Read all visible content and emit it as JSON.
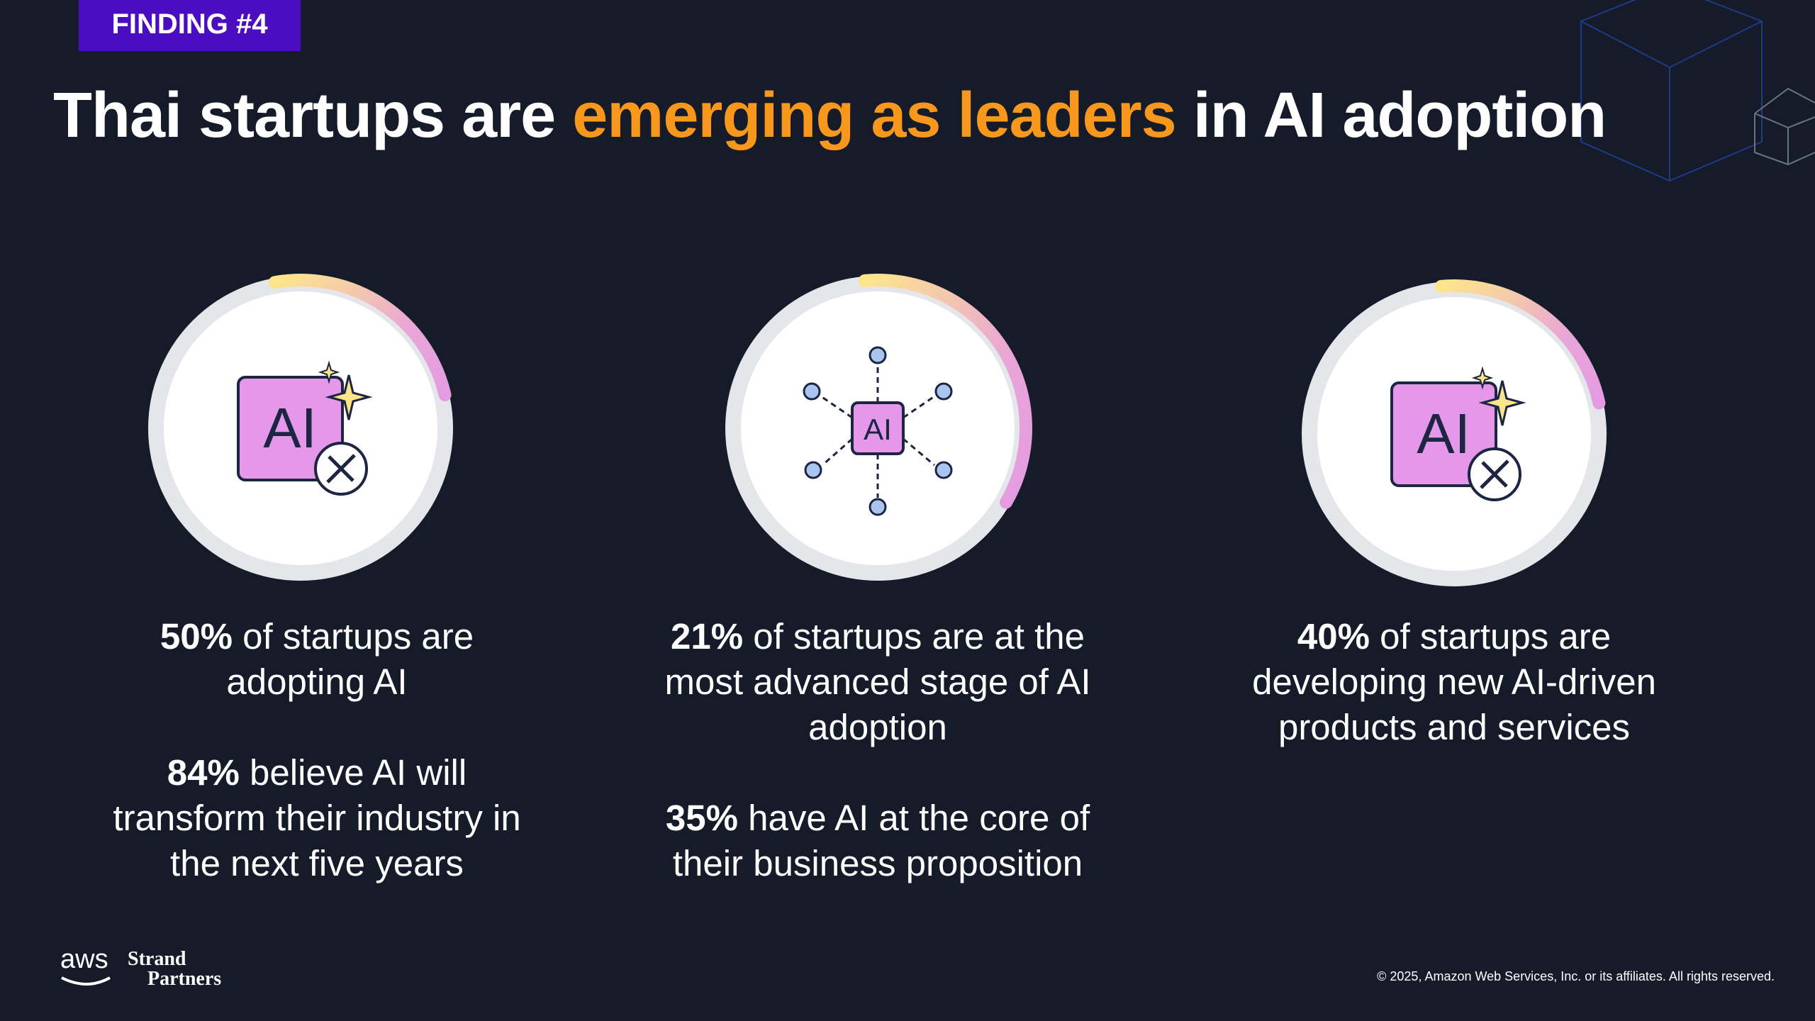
{
  "badge": "FINDING #4",
  "title": {
    "before": "Thai startups are",
    "highlight": "emerging as leaders",
    "after": "in AI adoption"
  },
  "columns": [
    {
      "icon_label": "AI",
      "stats": [
        {
          "figure": "50%",
          "text": "of startups are adopting AI"
        },
        {
          "figure": "84%",
          "text": "believe AI will transform their industry in the next five years"
        }
      ]
    },
    {
      "icon_label": "AI",
      "stats": [
        {
          "figure": "21%",
          "text": "of startups are at the most advanced stage of AI adoption"
        },
        {
          "figure": "35%",
          "text": "have AI at the core of their business proposition"
        }
      ]
    },
    {
      "icon_label": "AI",
      "stats": [
        {
          "figure": "40%",
          "text": "of startups are developing new AI-driven products and services"
        }
      ]
    }
  ],
  "footer": {
    "logo_aws": "aws",
    "logo_partner_1": "Strand",
    "logo_partner_2": "Partners",
    "copyright": "© 2025, Amazon Web Services, Inc. or its affiliates. All rights reserved."
  }
}
